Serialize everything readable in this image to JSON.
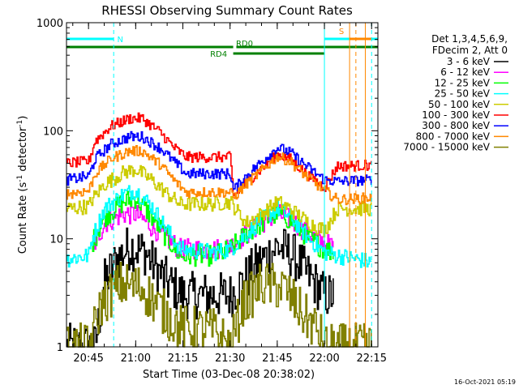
{
  "chart_data": {
    "type": "line",
    "title": "RHESSI Observing Summary Count Rates",
    "xlabel": "Start Time (03-Dec-08 20:38:02)",
    "ylabel": "Count Rate (s⁻¹ detector⁻¹)",
    "ylabel_parts": [
      "Count Rate (s",
      "-1",
      " detector",
      "-1",
      ")"
    ],
    "x_scale": "time",
    "y_scale": "log",
    "xlim": [
      "20:38",
      "22:17"
    ],
    "ylim": [
      1,
      1000
    ],
    "x_ticks": [
      "20:45",
      "21:00",
      "21:15",
      "21:30",
      "21:45",
      "22:00",
      "22:15"
    ],
    "y_ticks": [
      "1",
      "10",
      "100",
      "1000"
    ],
    "legend_title": [
      "Det 1,3,4,5,6,9,",
      "FDecim 2, Att 0"
    ],
    "legend_position": "right",
    "series": [
      {
        "name": "3 - 6 keV",
        "color": "#000000",
        "points": [
          [
            "20:38",
            1.0
          ],
          [
            "20:47",
            1.0
          ],
          [
            "20:50",
            4.0
          ],
          [
            "20:54",
            6.5
          ],
          [
            "20:58",
            8.5
          ],
          [
            "21:03",
            7.5
          ],
          [
            "21:06",
            5.5
          ],
          [
            "21:10",
            4.0
          ],
          [
            "21:15",
            3.0
          ],
          [
            "21:25",
            3.0
          ],
          [
            "21:30",
            3.0
          ],
          [
            "21:34",
            4.0
          ],
          [
            "21:39",
            6.0
          ],
          [
            "21:45",
            8.5
          ],
          [
            "21:50",
            7.0
          ],
          [
            "21:55",
            4.5
          ],
          [
            "22:00",
            3.0
          ],
          [
            "22:03",
            3.0
          ]
        ]
      },
      {
        "name": "6 - 12 keV",
        "color": "#ff00ff",
        "points": [
          [
            "20:46",
            8.0
          ],
          [
            "20:50",
            14.0
          ],
          [
            "20:56",
            17.0
          ],
          [
            "21:00",
            17.0
          ],
          [
            "21:05",
            13.0
          ],
          [
            "21:10",
            10.0
          ],
          [
            "21:14",
            8.0
          ],
          [
            "21:25",
            8.0
          ],
          [
            "21:30",
            8.5
          ],
          [
            "21:35",
            11.0
          ],
          [
            "21:40",
            14.0
          ],
          [
            "21:45",
            17.0
          ],
          [
            "21:49",
            15.0
          ],
          [
            "21:55",
            11.0
          ],
          [
            "22:00",
            9.0
          ],
          [
            "22:03",
            8.5
          ]
        ]
      },
      {
        "name": "12 - 25 keV",
        "color": "#00ff00",
        "points": [
          [
            "20:46",
            9.0
          ],
          [
            "20:50",
            16.0
          ],
          [
            "20:56",
            22.0
          ],
          [
            "21:00",
            24.0
          ],
          [
            "21:05",
            16.0
          ],
          [
            "21:10",
            10.0
          ],
          [
            "21:14",
            7.0
          ],
          [
            "21:25",
            7.0
          ],
          [
            "21:30",
            8.0
          ],
          [
            "21:35",
            11.0
          ],
          [
            "21:40",
            14.0
          ],
          [
            "21:45",
            17.5
          ],
          [
            "21:49",
            15.0
          ],
          [
            "21:55",
            10.0
          ],
          [
            "22:00",
            8.0
          ],
          [
            "22:03",
            7.5
          ]
        ]
      },
      {
        "name": "25 - 50 keV",
        "color": "#00ffff",
        "points": [
          [
            "20:38",
            6.5
          ],
          [
            "20:45",
            7.0
          ],
          [
            "20:46",
            10.0
          ],
          [
            "20:50",
            19.0
          ],
          [
            "20:56",
            26.0
          ],
          [
            "21:00",
            28.0
          ],
          [
            "21:05",
            20.0
          ],
          [
            "21:10",
            12.0
          ],
          [
            "21:14",
            8.0
          ],
          [
            "21:25",
            7.5
          ],
          [
            "21:30",
            8.0
          ],
          [
            "21:35",
            11.0
          ],
          [
            "21:40",
            15.0
          ],
          [
            "21:45",
            19.0
          ],
          [
            "21:49",
            16.0
          ],
          [
            "21:55",
            10.0
          ],
          [
            "22:00",
            7.5
          ],
          [
            "22:04",
            7.0
          ],
          [
            "22:10",
            6.5
          ],
          [
            "22:15",
            6.0
          ]
        ]
      },
      {
        "name": "50 - 100 keV",
        "color": "#cccc00",
        "points": [
          [
            "20:38",
            19.0
          ],
          [
            "20:45",
            20.0
          ],
          [
            "20:46",
            23.0
          ],
          [
            "20:50",
            32.0
          ],
          [
            "20:56",
            41.0
          ],
          [
            "21:00",
            44.0
          ],
          [
            "21:05",
            35.0
          ],
          [
            "21:10",
            26.0
          ],
          [
            "21:14",
            21.0
          ],
          [
            "21:25",
            21.0
          ],
          [
            "21:30",
            22.0
          ],
          [
            "21:35",
            14.0
          ],
          [
            "21:40",
            17.0
          ],
          [
            "21:45",
            22.0
          ],
          [
            "21:49",
            19.0
          ],
          [
            "21:55",
            14.0
          ],
          [
            "22:00",
            12.0
          ],
          [
            "22:04",
            19.0
          ],
          [
            "22:15",
            19.0
          ]
        ]
      },
      {
        "name": "100 - 300 keV",
        "color": "#ff0000",
        "points": [
          [
            "20:38",
            50.0
          ],
          [
            "20:45",
            52.0
          ],
          [
            "20:47",
            80.0
          ],
          [
            "20:52",
            110.0
          ],
          [
            "20:58",
            130.0
          ],
          [
            "21:02",
            130.0
          ],
          [
            "21:08",
            95.0
          ],
          [
            "21:12",
            70.0
          ],
          [
            "21:16",
            57.0
          ],
          [
            "21:30",
            57.0
          ],
          [
            "21:31",
            25.0
          ],
          [
            "21:35",
            33.0
          ],
          [
            "21:40",
            45.0
          ],
          [
            "21:45",
            60.0
          ],
          [
            "21:49",
            55.0
          ],
          [
            "21:55",
            38.0
          ],
          [
            "22:00",
            30.0
          ],
          [
            "22:04",
            47.0
          ],
          [
            "22:15",
            48.0
          ]
        ]
      },
      {
        "name": "300 - 800 keV",
        "color": "#0000ff",
        "points": [
          [
            "20:38",
            35.0
          ],
          [
            "20:45",
            38.0
          ],
          [
            "20:47",
            55.0
          ],
          [
            "20:52",
            75.0
          ],
          [
            "20:58",
            88.0
          ],
          [
            "21:02",
            88.0
          ],
          [
            "21:08",
            68.0
          ],
          [
            "21:12",
            52.0
          ],
          [
            "21:16",
            40.0
          ],
          [
            "21:30",
            40.0
          ],
          [
            "21:31",
            28.0
          ],
          [
            "21:35",
            38.0
          ],
          [
            "21:40",
            52.0
          ],
          [
            "21:45",
            70.0
          ],
          [
            "21:49",
            63.0
          ],
          [
            "21:55",
            45.0
          ],
          [
            "22:00",
            35.0
          ],
          [
            "22:04",
            34.0
          ],
          [
            "22:15",
            35.0
          ]
        ]
      },
      {
        "name": "800 - 7000 keV",
        "color": "#ff8800",
        "points": [
          [
            "20:38",
            26.0
          ],
          [
            "20:45",
            28.0
          ],
          [
            "20:47",
            40.0
          ],
          [
            "20:52",
            55.0
          ],
          [
            "20:58",
            65.0
          ],
          [
            "21:02",
            65.0
          ],
          [
            "21:08",
            48.0
          ],
          [
            "21:12",
            35.0
          ],
          [
            "21:16",
            27.0
          ],
          [
            "21:30",
            27.0
          ],
          [
            "21:31",
            24.0
          ],
          [
            "21:35",
            32.0
          ],
          [
            "21:40",
            43.0
          ],
          [
            "21:45",
            58.0
          ],
          [
            "21:49",
            52.0
          ],
          [
            "21:55",
            36.0
          ],
          [
            "22:00",
            28.0
          ],
          [
            "22:04",
            23.0
          ],
          [
            "22:15",
            24.0
          ]
        ]
      },
      {
        "name": "7000 - 15000 keV",
        "color": "#808000",
        "points": [
          [
            "20:38",
            1.0
          ],
          [
            "20:45",
            1.0
          ],
          [
            "20:49",
            2.5
          ],
          [
            "20:55",
            3.8
          ],
          [
            "21:02",
            3.5
          ],
          [
            "21:08",
            2.2
          ],
          [
            "21:14",
            1.5
          ],
          [
            "21:25",
            1.4
          ],
          [
            "21:30",
            1.0
          ],
          [
            "21:34",
            2.5
          ],
          [
            "21:40",
            3.8
          ],
          [
            "21:47",
            3.5
          ],
          [
            "21:53",
            2.0
          ],
          [
            "21:58",
            1.4
          ],
          [
            "22:00",
            1.0
          ],
          [
            "22:15",
            1.0
          ]
        ]
      }
    ],
    "attenuator_bars": [
      {
        "label": "RD0",
        "start": "21:32",
        "end": "22:17",
        "level": "upper",
        "color": "#008000"
      },
      {
        "label": "RD4",
        "start": "20:38",
        "end": "21:31",
        "level": "upper",
        "color": "#008000"
      },
      {
        "label": "",
        "start": "21:31",
        "end": "22:00",
        "level": "lower",
        "color": "#008000"
      },
      {
        "label": "N",
        "start": "20:38",
        "end": "20:53",
        "level": "top",
        "color": "#00ffff"
      },
      {
        "label": "",
        "start": "22:00",
        "end": "22:17",
        "level": "top",
        "color": "#00ffff"
      },
      {
        "label": "S",
        "start": "22:08",
        "end": "22:15",
        "level": "top",
        "color": "#ff8800"
      }
    ],
    "vlines": [
      {
        "time": "20:53",
        "color": "#00ffff",
        "style": "dashed"
      },
      {
        "time": "22:00",
        "color": "#00ffff",
        "style": "solid"
      },
      {
        "time": "22:08",
        "color": "#ff8800",
        "style": "solid"
      },
      {
        "time": "22:10",
        "color": "#ff8800",
        "style": "dashed"
      },
      {
        "time": "22:13",
        "color": "#ff8800",
        "style": "solid"
      },
      {
        "time": "22:15",
        "color": "#00ffff",
        "style": "dashed"
      }
    ]
  },
  "footer": {
    "timestamp": "16-Oct-2021 05:19"
  }
}
